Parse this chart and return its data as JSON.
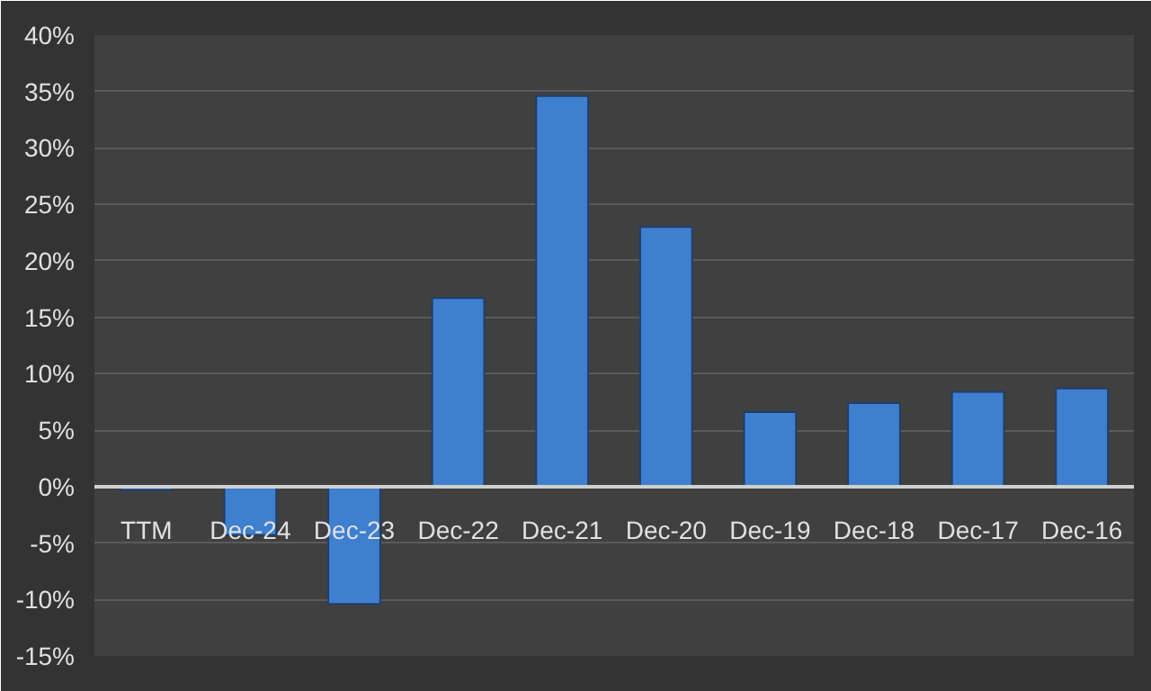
{
  "chart_data": {
    "type": "bar",
    "categories": [
      "TTM",
      "Dec-24",
      "Dec-23",
      "Dec-22",
      "Dec-21",
      "Dec-20",
      "Dec-19",
      "Dec-18",
      "Dec-17",
      "Dec-16"
    ],
    "values": [
      -0.3,
      -4.3,
      -10.4,
      16.7,
      34.6,
      23.0,
      6.6,
      7.4,
      8.4,
      8.7
    ],
    "color": "#3f7fd0",
    "ylim": [
      -15,
      40
    ],
    "yticks": [
      {
        "value": -15,
        "label": "-15%"
      },
      {
        "value": -10,
        "label": "-10%"
      },
      {
        "value": -5,
        "label": "-5%"
      },
      {
        "value": 0,
        "label": "0%"
      },
      {
        "value": 5,
        "label": "5%"
      },
      {
        "value": 10,
        "label": "10%"
      },
      {
        "value": 15,
        "label": "15%"
      },
      {
        "value": 20,
        "label": "20%"
      },
      {
        "value": 25,
        "label": "25%"
      },
      {
        "value": 30,
        "label": "30%"
      },
      {
        "value": 35,
        "label": "35%"
      },
      {
        "value": 40,
        "label": "40%"
      }
    ],
    "grid": "y"
  }
}
